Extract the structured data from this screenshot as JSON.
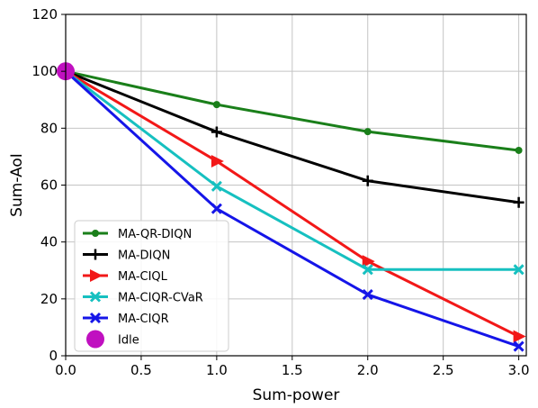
{
  "chart_data": {
    "type": "line",
    "xlabel": "Sum-power",
    "ylabel": "Sum-AoI",
    "xlim": [
      0,
      3.05
    ],
    "ylim": [
      0,
      120
    ],
    "xticks": [
      "0.0",
      "0.5",
      "1.0",
      "1.5",
      "2.0",
      "2.5",
      "3.0"
    ],
    "yticks": [
      "0",
      "20",
      "40",
      "60",
      "80",
      "100",
      "120"
    ],
    "grid": true,
    "legend_position": "lower-left",
    "x": [
      0,
      1,
      2,
      3
    ],
    "series": [
      {
        "name": "MA-QR-DIQN",
        "color": "#1a7f1a",
        "marker": "circle",
        "values": [
          100,
          88.3,
          78.8,
          72.2
        ]
      },
      {
        "name": "MA-DIQN",
        "color": "#000000",
        "marker": "plus",
        "values": [
          100,
          78.7,
          61.5,
          53.9
        ]
      },
      {
        "name": "MA-CIQL",
        "color": "#f21818",
        "marker": "triangle-right",
        "values": [
          100,
          68.4,
          33.2,
          6.8
        ]
      },
      {
        "name": "MA-CIQR-CVaR",
        "color": "#16c0c0",
        "marker": "x",
        "values": [
          100,
          59.6,
          30.3,
          30.3
        ]
      },
      {
        "name": "MA-CIQR",
        "color": "#1515e8",
        "marker": "x",
        "values": [
          100,
          51.7,
          21.5,
          3.3
        ]
      }
    ],
    "idle": {
      "name": "Idle",
      "color": "#c010c0",
      "marker": "big-circle",
      "x": 0,
      "y": 100
    }
  }
}
